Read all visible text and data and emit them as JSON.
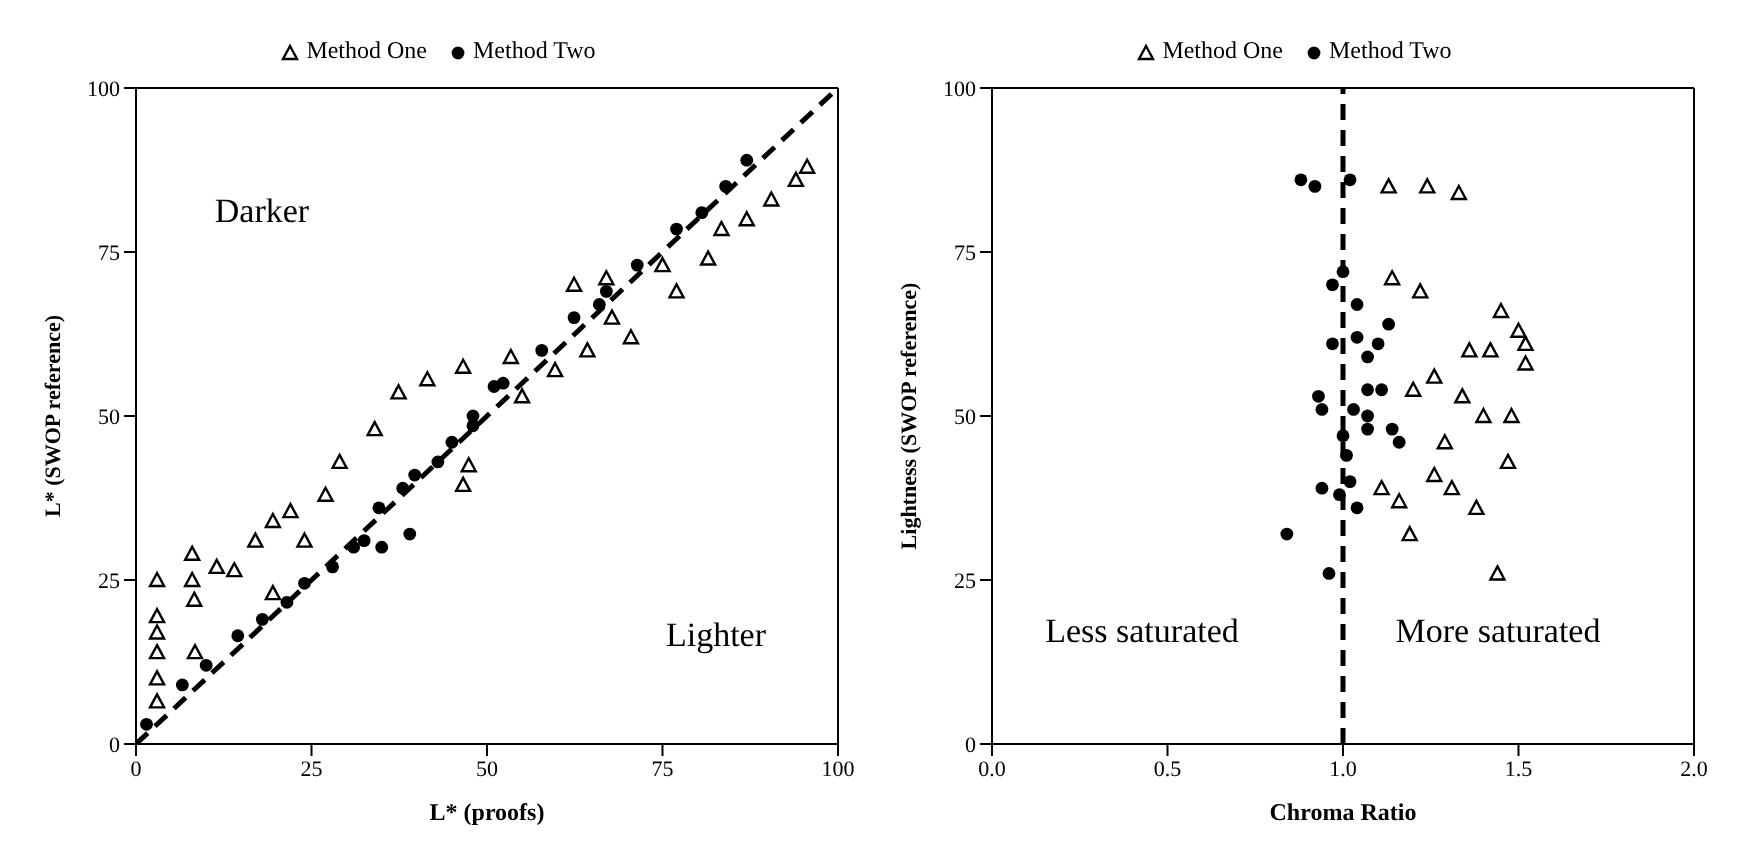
{
  "chart_data": [
    {
      "type": "scatter",
      "xlabel": "L* (proofs)",
      "ylabel": "L* (SWOP reference)",
      "xlim": [
        0,
        100
      ],
      "ylim": [
        0,
        100
      ],
      "xticks": [
        0,
        25,
        50,
        75,
        100
      ],
      "yticks": [
        0,
        25,
        50,
        75,
        100
      ],
      "legend": "top",
      "annotations": [
        "Darker",
        "Lighter"
      ],
      "series": [
        {
          "name": "Method One",
          "color": "#000000",
          "marker": "triangle",
          "x": [
            3,
            3,
            3,
            3,
            3,
            3,
            8,
            8,
            8.3,
            8.4,
            11.5,
            14,
            17,
            19.5,
            22,
            19.5,
            24,
            27,
            29,
            34,
            37.4,
            41.5,
            46.6,
            46.6,
            47.4,
            53.4,
            55,
            59.7,
            64.3,
            67.8,
            70.5,
            75,
            77,
            81.5,
            83.4,
            87,
            90.5,
            94,
            95.6,
            62.4,
            67
          ],
          "values": [
            25,
            19.5,
            17,
            14,
            10,
            6.5,
            29,
            25,
            22,
            14,
            27,
            26.5,
            31,
            34,
            35.5,
            23,
            31,
            38,
            43,
            48,
            53.6,
            55.6,
            57.5,
            39.5,
            42.5,
            59,
            53,
            57,
            60,
            65,
            62,
            73,
            69,
            74,
            78.5,
            80,
            83,
            86,
            88,
            70,
            71
          ]
        },
        {
          "name": "Method Two",
          "color": "#000000",
          "marker": "circle",
          "x": [
            1.5,
            6.6,
            10,
            14.5,
            18,
            21.5,
            24,
            28,
            31,
            32.5,
            35,
            34.6,
            38,
            39.7,
            39,
            43,
            45,
            48,
            51,
            48,
            52.3,
            57.8,
            62.4,
            66,
            67,
            71.4,
            77,
            80.6,
            84,
            87
          ],
          "values": [
            3,
            9,
            12,
            16.5,
            19,
            21.6,
            24.5,
            27,
            30,
            31,
            30,
            36,
            39,
            41,
            32,
            43,
            46,
            50,
            54.5,
            48.5,
            55,
            60,
            65,
            67,
            69,
            73,
            78.5,
            81,
            85,
            89
          ]
        },
        {
          "type": "line",
          "color": "#000000",
          "line_style": "dashed",
          "marker": "none",
          "x": [
            0,
            100
          ],
          "values": [
            0,
            100
          ]
        }
      ]
    },
    {
      "type": "scatter",
      "xlabel": "Chroma Ratio",
      "ylabel": "Lightness (SWOP reference)",
      "xlim": [
        0,
        2
      ],
      "ylim": [
        0,
        100
      ],
      "xticks": [
        {
          "value": 0,
          "label": "0.0"
        },
        {
          "value": 0.5,
          "label": "0.5"
        },
        {
          "value": 1,
          "label": "1.0"
        },
        {
          "value": 1.5,
          "label": "1.5"
        },
        {
          "value": 2,
          "label": "2.0"
        }
      ],
      "yticks": [
        0,
        25,
        50,
        75,
        100
      ],
      "legend": "top",
      "annotations": [
        "Less saturated",
        "More saturated"
      ],
      "ref_lines": [
        {
          "axis": "x",
          "value": 1,
          "color": "#000000",
          "line_style": "dashed"
        }
      ],
      "series": [
        {
          "name": "Method One",
          "color": "#000000",
          "marker": "triangle",
          "x": [
            1.13,
            1.24,
            1.33,
            1.14,
            1.22,
            1.2,
            1.26,
            1.36,
            1.42,
            1.34,
            1.4,
            1.48,
            1.29,
            1.11,
            1.16,
            1.26,
            1.31,
            1.38,
            1.19,
            1.5,
            1.52,
            1.52,
            1.45,
            1.47,
            1.44
          ],
          "values": [
            85,
            85,
            84,
            71,
            69,
            54,
            56,
            60,
            60,
            53,
            50,
            50,
            46,
            39,
            37,
            41,
            39,
            36,
            32,
            63,
            61,
            58,
            66,
            43,
            26
          ]
        },
        {
          "name": "Method Two",
          "color": "#000000",
          "marker": "circle",
          "x": [
            0.88,
            0.92,
            1.02,
            0.97,
            1.0,
            1.04,
            1.04,
            1.13,
            1.1,
            0.97,
            1.07,
            1.07,
            1.11,
            0.93,
            0.94,
            1.03,
            1.07,
            1.07,
            1.14,
            1.16,
            1.0,
            1.01,
            0.94,
            1.02,
            0.99,
            1.04,
            0.84,
            0.96
          ],
          "values": [
            86,
            85,
            86,
            70,
            72,
            67,
            62,
            64,
            61,
            61,
            59,
            54,
            54,
            53,
            51,
            51,
            50,
            48,
            48,
            46,
            47,
            44,
            39,
            40,
            38,
            36,
            32,
            26
          ]
        }
      ]
    }
  ]
}
